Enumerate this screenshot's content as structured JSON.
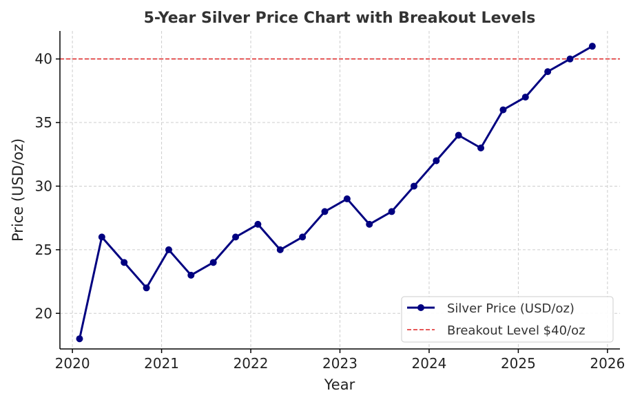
{
  "chart_data": {
    "type": "line",
    "title": "5-Year Silver Price Chart with Breakout Levels",
    "xlabel": "Year",
    "ylabel": "Price (USD/oz)",
    "xlim": [
      2019.86,
      2026.14
    ],
    "ylim": [
      17.2,
      42.2
    ],
    "x_ticks": [
      2020,
      2021,
      2022,
      2023,
      2024,
      2025,
      2026
    ],
    "y_ticks": [
      20,
      25,
      30,
      35,
      40
    ],
    "grid": true,
    "legend_position": "bottom-right",
    "series": [
      {
        "name": "Silver Price (USD/oz)",
        "color": "#000080",
        "marker": "circle",
        "x": [
          2020.08,
          2020.33,
          2020.58,
          2020.83,
          2021.08,
          2021.33,
          2021.58,
          2021.83,
          2022.08,
          2022.33,
          2022.58,
          2022.83,
          2023.08,
          2023.33,
          2023.58,
          2023.83,
          2024.08,
          2024.33,
          2024.58,
          2024.83,
          2025.08,
          2025.33,
          2025.58,
          2025.83
        ],
        "values": [
          18,
          26,
          24,
          22,
          25,
          23,
          24,
          26,
          27,
          25,
          26,
          28,
          29,
          27,
          28,
          30,
          32,
          34,
          33,
          36,
          37,
          39,
          40,
          41
        ]
      }
    ],
    "reference_lines": [
      {
        "name": "Breakout Level $40/oz",
        "y": 40,
        "color": "#dd2222",
        "style": "dashed"
      }
    ]
  }
}
